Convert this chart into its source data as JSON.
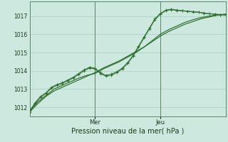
{
  "xlabel": "Pression niveau de la mer( hPa )",
  "bg_color": "#cce8df",
  "grid_color": "#a8cfc0",
  "line_color": "#2d6e2d",
  "ylim": [
    1011.5,
    1017.8
  ],
  "xlim": [
    0,
    72
  ],
  "yticks": [
    1012,
    1013,
    1014,
    1015,
    1016,
    1017
  ],
  "xtick_positions": [
    24,
    48
  ],
  "xtick_labels": [
    "Mer",
    "Jeu"
  ],
  "line1_x": [
    0,
    3,
    6,
    9,
    12,
    15,
    18,
    21,
    24,
    27,
    30,
    33,
    36,
    39,
    42,
    45,
    48,
    51,
    54,
    57,
    60,
    63,
    66,
    69,
    72
  ],
  "line1_y": [
    1011.75,
    1012.2,
    1012.6,
    1012.9,
    1013.1,
    1013.3,
    1013.5,
    1013.7,
    1013.9,
    1014.15,
    1014.35,
    1014.55,
    1014.8,
    1015.05,
    1015.3,
    1015.6,
    1015.9,
    1016.15,
    1016.35,
    1016.55,
    1016.7,
    1016.85,
    1016.95,
    1017.05,
    1017.1
  ],
  "line2_x": [
    0,
    3,
    6,
    9,
    12,
    15,
    18,
    21,
    24,
    27,
    30,
    33,
    36,
    39,
    42,
    45,
    48,
    51,
    54,
    57,
    60,
    63,
    66,
    69,
    72
  ],
  "line2_y": [
    1011.8,
    1012.3,
    1012.65,
    1013.0,
    1013.2,
    1013.4,
    1013.6,
    1013.75,
    1013.85,
    1014.1,
    1014.3,
    1014.5,
    1014.75,
    1015.0,
    1015.3,
    1015.65,
    1016.0,
    1016.25,
    1016.45,
    1016.65,
    1016.8,
    1016.92,
    1017.0,
    1017.07,
    1017.1
  ],
  "line3_x": [
    0,
    2,
    4,
    6,
    8,
    10,
    12,
    14,
    16,
    18,
    20,
    22,
    24,
    26,
    28,
    30,
    32,
    34,
    36,
    38,
    40,
    42,
    44,
    46,
    48,
    50,
    52,
    54,
    56,
    58,
    60,
    62,
    64,
    66,
    68,
    70,
    72
  ],
  "line3_y": [
    1011.75,
    1012.2,
    1012.55,
    1012.75,
    1013.05,
    1013.2,
    1013.3,
    1013.45,
    1013.6,
    1013.8,
    1014.0,
    1014.15,
    1014.1,
    1013.85,
    1013.7,
    1013.75,
    1013.9,
    1014.1,
    1014.4,
    1014.8,
    1015.3,
    1015.8,
    1016.3,
    1016.8,
    1017.1,
    1017.3,
    1017.35,
    1017.3,
    1017.28,
    1017.25,
    1017.22,
    1017.2,
    1017.15,
    1017.12,
    1017.1,
    1017.08,
    1017.05
  ],
  "line4_x": [
    0,
    2,
    4,
    6,
    8,
    10,
    12,
    14,
    16,
    18,
    20,
    22,
    24,
    26,
    28,
    30,
    32,
    34,
    36,
    38,
    40,
    42,
    44,
    46,
    48,
    50,
    52,
    54,
    56,
    58,
    60,
    62,
    64,
    66,
    68,
    70,
    72
  ],
  "line4_y": [
    1011.8,
    1012.25,
    1012.6,
    1012.8,
    1013.1,
    1013.25,
    1013.35,
    1013.5,
    1013.65,
    1013.85,
    1014.05,
    1014.2,
    1014.15,
    1013.9,
    1013.75,
    1013.82,
    1013.95,
    1014.15,
    1014.45,
    1014.85,
    1015.35,
    1015.85,
    1016.35,
    1016.85,
    1017.15,
    1017.32,
    1017.38,
    1017.33,
    1017.3,
    1017.27,
    1017.24,
    1017.22,
    1017.17,
    1017.13,
    1017.1,
    1017.08,
    1017.05
  ]
}
